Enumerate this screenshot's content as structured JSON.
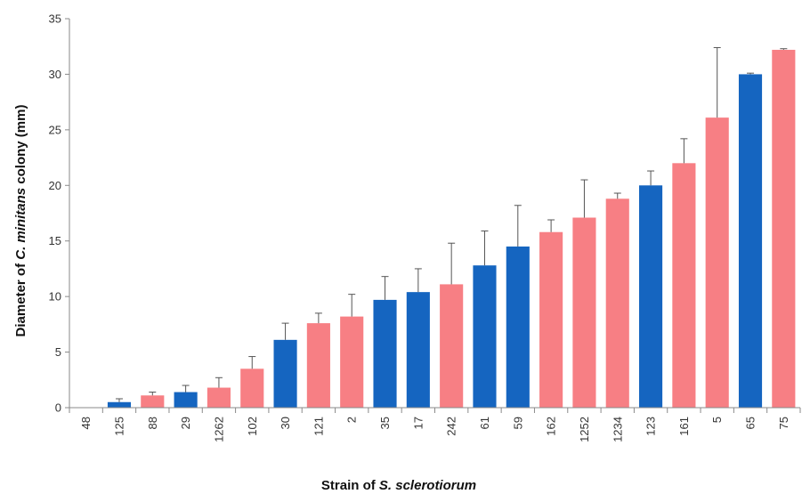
{
  "chart_data": {
    "type": "bar",
    "xlabel": {
      "prefix": "Strain of ",
      "italic": "S. sclerotiorum",
      "suffix": ""
    },
    "ylabel": {
      "prefix": "Diameter of ",
      "italic": "C. minitans",
      "suffix": " colony (mm)"
    },
    "ylim": [
      0,
      35
    ],
    "yticks": [
      0,
      5,
      10,
      15,
      20,
      25,
      30,
      35
    ],
    "grid": false,
    "legend": "none",
    "colors": {
      "blue": "#1565c0",
      "pink": "#f77f84"
    },
    "categories": [
      "48",
      "125",
      "88",
      "29",
      "1262",
      "102",
      "30",
      "121",
      "2",
      "35",
      "17",
      "242",
      "61",
      "59",
      "162",
      "1252",
      "1234",
      "123",
      "161",
      "5",
      "65",
      "75"
    ],
    "values": [
      0,
      0.5,
      1.1,
      1.4,
      1.8,
      3.5,
      6.1,
      7.6,
      8.2,
      9.7,
      10.4,
      11.1,
      12.8,
      14.5,
      15.8,
      17.1,
      18.8,
      20.0,
      22.0,
      26.1,
      30.0,
      32.2
    ],
    "errors": [
      0,
      0.3,
      0.3,
      0.6,
      0.9,
      1.1,
      1.5,
      0.9,
      2.0,
      2.1,
      2.1,
      3.7,
      3.1,
      3.7,
      1.1,
      3.4,
      0.5,
      1.3,
      2.2,
      6.3,
      0.1,
      0.1
    ],
    "bar_colors": [
      "blue",
      "blue",
      "pink",
      "blue",
      "pink",
      "pink",
      "blue",
      "pink",
      "pink",
      "blue",
      "blue",
      "pink",
      "blue",
      "blue",
      "pink",
      "pink",
      "pink",
      "blue",
      "pink",
      "pink",
      "blue",
      "pink"
    ]
  }
}
